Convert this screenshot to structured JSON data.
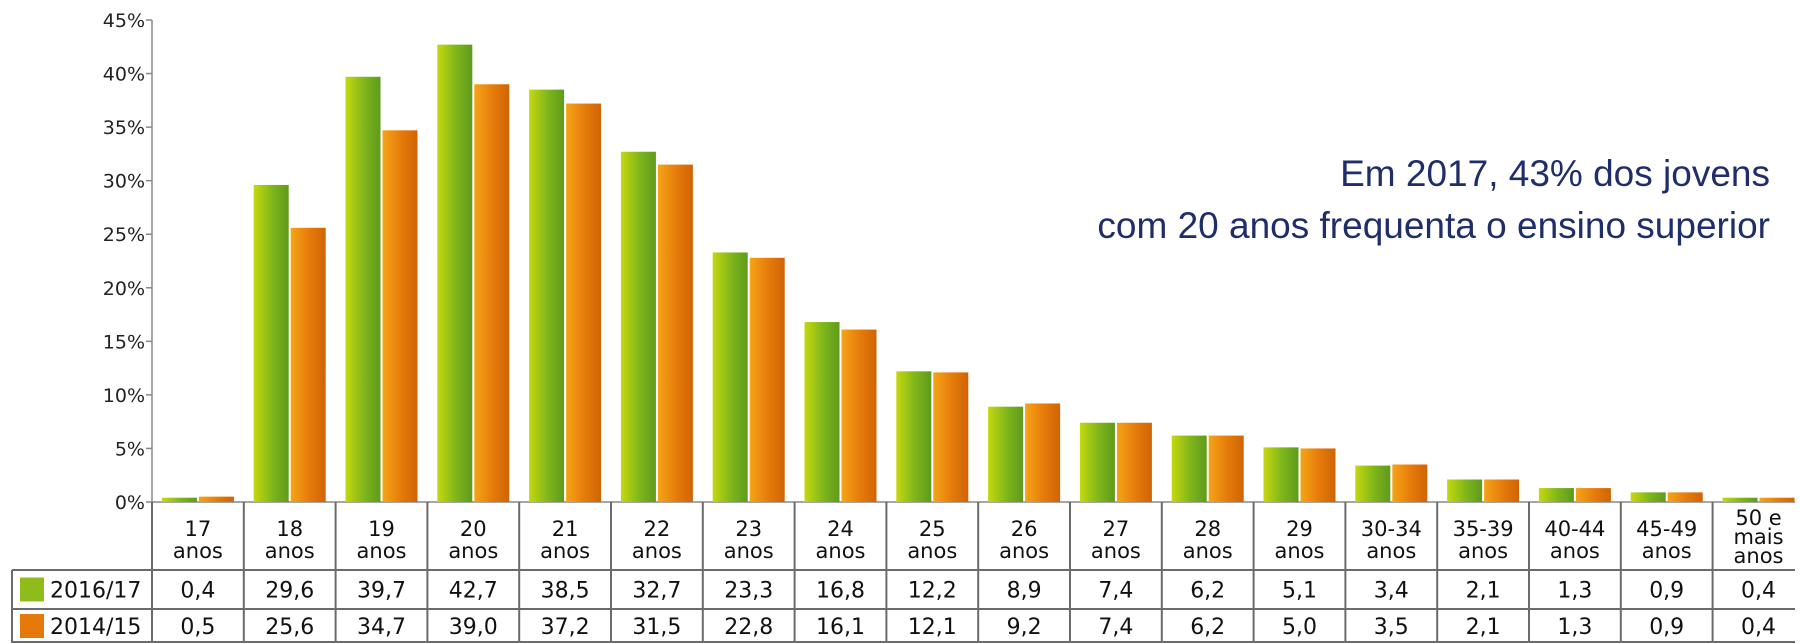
{
  "annotation": {
    "line1": "Em 2017, 43% dos jovens",
    "line2": "com 20 anos frequenta o ensino superior"
  },
  "chart_data": {
    "type": "bar",
    "title": "",
    "xlabel": "",
    "ylabel": "",
    "ylim": [
      0,
      45
    ],
    "yticks": [
      "0%",
      "5%",
      "10%",
      "15%",
      "20%",
      "25%",
      "30%",
      "35%",
      "40%",
      "45%"
    ],
    "grid": false,
    "legend": "table-left",
    "categories": [
      [
        "17",
        "anos"
      ],
      [
        "18",
        "anos"
      ],
      [
        "19",
        "anos"
      ],
      [
        "20",
        "anos"
      ],
      [
        "21",
        "anos"
      ],
      [
        "22",
        "anos"
      ],
      [
        "23",
        "anos"
      ],
      [
        "24",
        "anos"
      ],
      [
        "25",
        "anos"
      ],
      [
        "26",
        "anos"
      ],
      [
        "27",
        "anos"
      ],
      [
        "28",
        "anos"
      ],
      [
        "29",
        "anos"
      ],
      [
        "30-34",
        "anos"
      ],
      [
        "35-39",
        "anos"
      ],
      [
        "40-44",
        "anos"
      ],
      [
        "45-49",
        "anos"
      ],
      [
        "50 e",
        "mais",
        "anos"
      ]
    ],
    "series": [
      {
        "name": "2016/17",
        "color": "#8fbc1a",
        "values": [
          0.4,
          29.6,
          39.7,
          42.7,
          38.5,
          32.7,
          23.3,
          16.8,
          12.2,
          8.9,
          7.4,
          6.2,
          5.1,
          3.4,
          2.1,
          1.3,
          0.9,
          0.4
        ],
        "labels": [
          "0,4",
          "29,6",
          "39,7",
          "42,7",
          "38,5",
          "32,7",
          "23,3",
          "16,8",
          "12,2",
          "8,9",
          "7,4",
          "6,2",
          "5,1",
          "3,4",
          "2,1",
          "1,3",
          "0,9",
          "0,4"
        ]
      },
      {
        "name": "2014/15",
        "color": "#e57a0a",
        "values": [
          0.5,
          25.6,
          34.7,
          39.0,
          37.2,
          31.5,
          22.8,
          16.1,
          12.1,
          9.2,
          7.4,
          6.2,
          5.0,
          3.5,
          2.1,
          1.3,
          0.9,
          0.4
        ],
        "labels": [
          "0,5",
          "25,6",
          "34,7",
          "39,0",
          "37,2",
          "31,5",
          "22,8",
          "16,1",
          "12,1",
          "9,2",
          "7,4",
          "6,2",
          "5,0",
          "3,5",
          "2,1",
          "1,3",
          "0,9",
          "0,4"
        ]
      }
    ]
  }
}
